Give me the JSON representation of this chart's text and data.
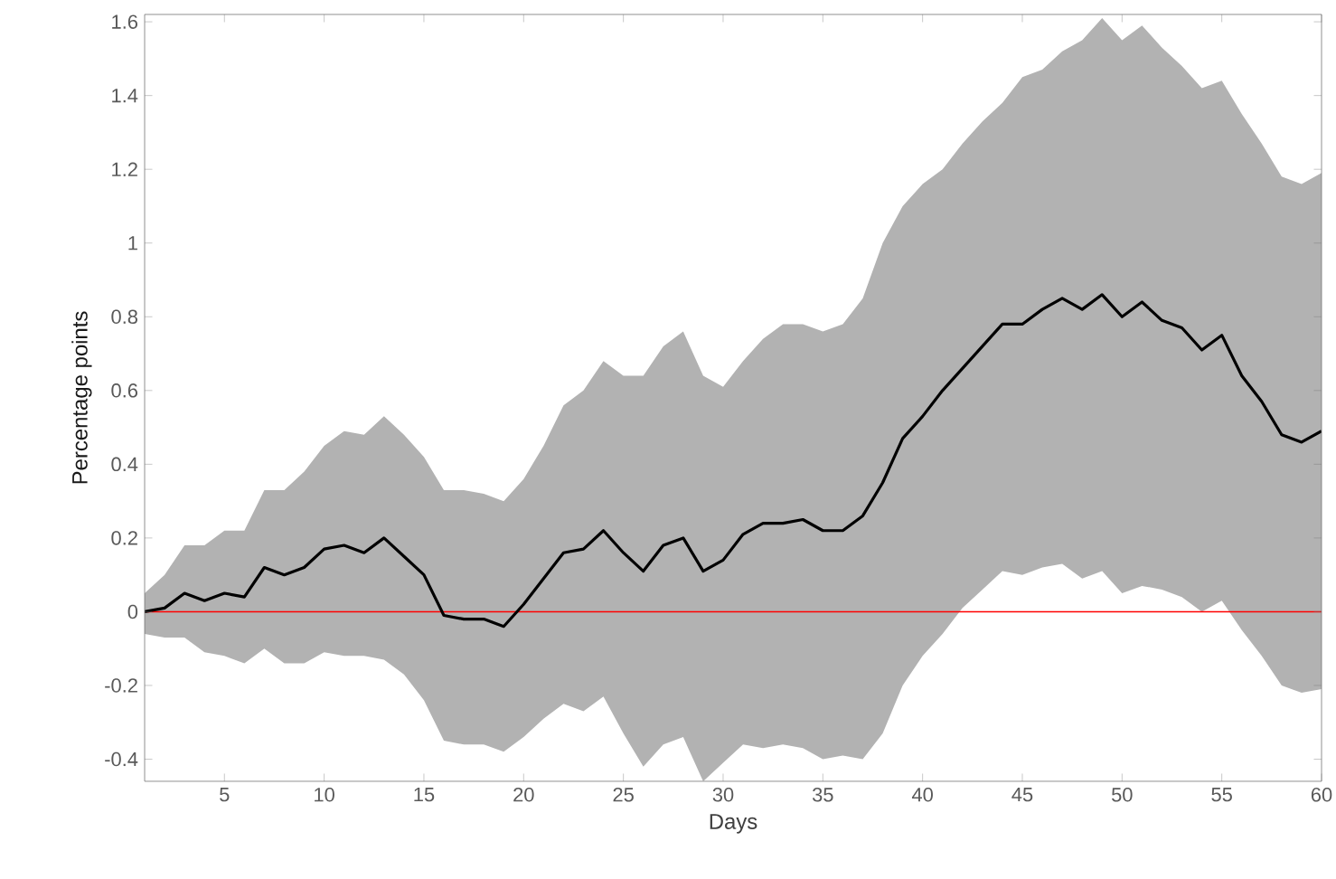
{
  "chart_data": {
    "type": "line",
    "xlabel": "Days",
    "ylabel": "Percentage points",
    "x": [
      1,
      2,
      3,
      4,
      5,
      6,
      7,
      8,
      9,
      10,
      11,
      12,
      13,
      14,
      15,
      16,
      17,
      18,
      19,
      20,
      21,
      22,
      23,
      24,
      25,
      26,
      27,
      28,
      29,
      30,
      31,
      32,
      33,
      34,
      35,
      36,
      37,
      38,
      39,
      40,
      41,
      42,
      43,
      44,
      45,
      46,
      47,
      48,
      49,
      50,
      51,
      52,
      53,
      54,
      55,
      56,
      57,
      58,
      59,
      60
    ],
    "series": [
      {
        "color": "#000000",
        "values": [
          0,
          0.01,
          0.05,
          0.03,
          0.05,
          0.04,
          0.12,
          0.1,
          0.12,
          0.17,
          0.18,
          0.16,
          0.2,
          0.15,
          0.1,
          -0.01,
          -0.02,
          -0.02,
          -0.04,
          0.02,
          0.09,
          0.16,
          0.17,
          0.22,
          0.16,
          0.11,
          0.18,
          0.2,
          0.11,
          0.14,
          0.21,
          0.24,
          0.24,
          0.25,
          0.22,
          0.22,
          0.26,
          0.35,
          0.47,
          0.53,
          0.6,
          0.66,
          0.72,
          0.78,
          0.78,
          0.82,
          0.85,
          0.82,
          0.86,
          0.8,
          0.84,
          0.79,
          0.77,
          0.71,
          0.75,
          0.64,
          0.57,
          0.48,
          0.46,
          0.49
        ],
        "upper": [
          0.05,
          0.1,
          0.18,
          0.18,
          0.22,
          0.22,
          0.33,
          0.33,
          0.38,
          0.45,
          0.49,
          0.48,
          0.53,
          0.48,
          0.42,
          0.33,
          0.33,
          0.32,
          0.3,
          0.36,
          0.45,
          0.56,
          0.6,
          0.68,
          0.64,
          0.64,
          0.72,
          0.76,
          0.64,
          0.61,
          0.68,
          0.74,
          0.78,
          0.78,
          0.76,
          0.78,
          0.85,
          1.0,
          1.1,
          1.16,
          1.2,
          1.27,
          1.33,
          1.38,
          1.45,
          1.47,
          1.52,
          1.55,
          1.61,
          1.55,
          1.59,
          1.53,
          1.48,
          1.42,
          1.44,
          1.35,
          1.27,
          1.18,
          1.16,
          1.19
        ],
        "lower": [
          -0.06,
          -0.07,
          -0.07,
          -0.11,
          -0.12,
          -0.14,
          -0.1,
          -0.14,
          -0.14,
          -0.11,
          -0.12,
          -0.12,
          -0.13,
          -0.17,
          -0.24,
          -0.35,
          -0.36,
          -0.36,
          -0.38,
          -0.34,
          -0.29,
          -0.25,
          -0.27,
          -0.23,
          -0.33,
          -0.42,
          -0.36,
          -0.34,
          -0.46,
          -0.41,
          -0.36,
          -0.37,
          -0.36,
          -0.37,
          -0.4,
          -0.39,
          -0.4,
          -0.33,
          -0.2,
          -0.12,
          -0.06,
          0.01,
          0.06,
          0.11,
          0.1,
          0.12,
          0.13,
          0.09,
          0.11,
          0.05,
          0.07,
          0.06,
          0.04,
          0.0,
          0.03,
          -0.05,
          -0.12,
          -0.2,
          -0.22,
          -0.21
        ]
      }
    ],
    "xlim": [
      1,
      60
    ],
    "ylim": [
      -0.46,
      1.62
    ],
    "xticks": [
      5,
      10,
      15,
      20,
      25,
      30,
      35,
      40,
      45,
      50,
      55,
      60
    ],
    "yticks": [
      -0.4,
      -0.2,
      0,
      0.2,
      0.4,
      0.6,
      0.8,
      1,
      1.2,
      1.4,
      1.6
    ],
    "ref_lines": [
      {
        "axis": "y",
        "value": 0,
        "color": "#ff0000"
      }
    ],
    "grid": false,
    "line_style": "solid",
    "marker": "none"
  }
}
